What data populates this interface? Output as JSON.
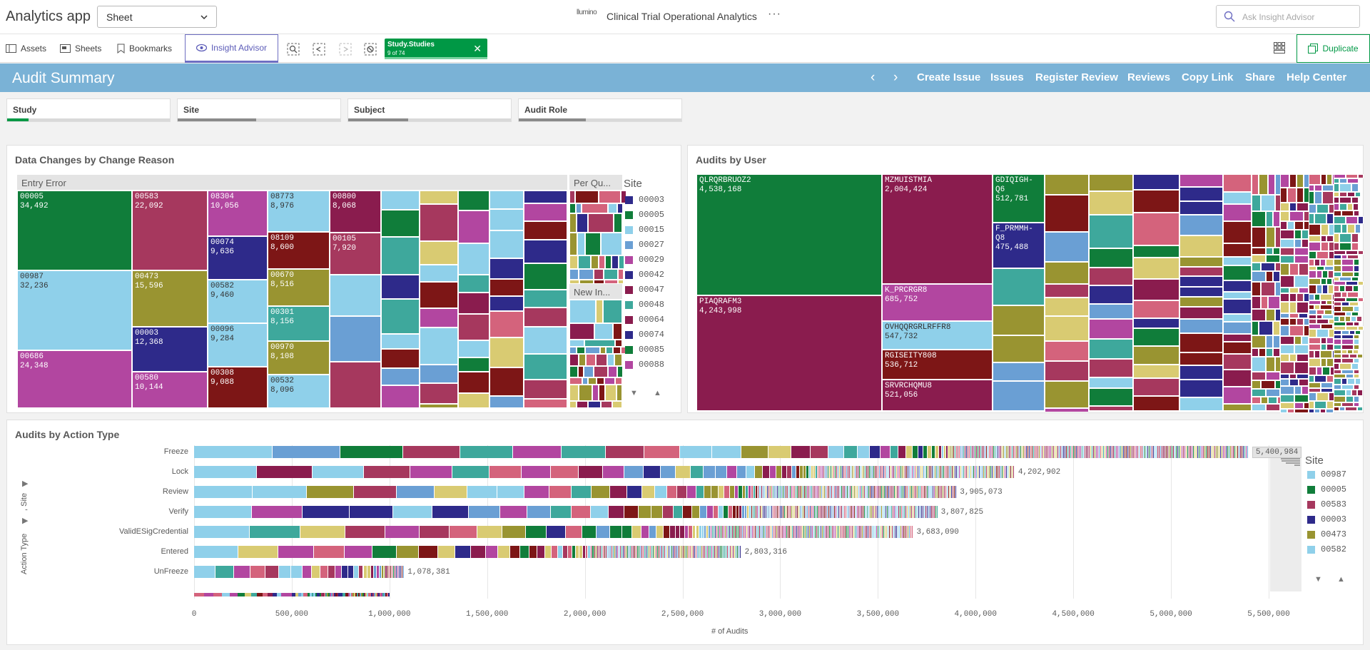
{
  "app": {
    "title": "Analytics app",
    "sheet_select": "Sheet",
    "center_logo": "llumino",
    "center_title": "Clinical Trial Operational Analytics",
    "more": "···",
    "ask_placeholder": "Ask Insight Advisor"
  },
  "toolbar": {
    "assets": "Assets",
    "sheets": "Sheets",
    "bookmarks": "Bookmarks",
    "insight": "Insight Advisor",
    "selection_chip": {
      "field": "Study.Studies",
      "count": "9 of 74"
    },
    "duplicate": "Duplicate"
  },
  "banner": {
    "title": "Audit Summary",
    "prev": "‹",
    "next": "›",
    "links": [
      "Create Issue",
      "Issues",
      "Register Review",
      "Reviews",
      "Copy Link",
      "Share",
      "Help Center"
    ]
  },
  "filters": [
    {
      "label": "Study",
      "selected_fraction": 0.1
    },
    {
      "label": "Site",
      "selected_fraction": 0.0
    },
    {
      "label": "Subject",
      "selected_fraction": 0.0
    },
    {
      "label": "Audit Role",
      "selected_fraction": 0.0
    }
  ],
  "colors": {
    "green": "#107d3a",
    "rose": "#a6385e",
    "purple": "#b246a0",
    "navy": "#2e2a8a",
    "olive": "#999431",
    "sky": "#8fd0ea",
    "blue": "#6a9fd4",
    "teal": "#3ea89c",
    "maroon": "#7d1616",
    "wine": "#8a1c4e",
    "pink": "#d4637c",
    "khaki": "#d9cb72",
    "accent": "#009845",
    "banner": "#7ab2d6"
  },
  "treemap_reason": {
    "title": "Data Changes by Change Reason",
    "group_main": "Entry Error",
    "group_2": "Per Qu...",
    "group_3": "New In...",
    "cells": [
      {
        "site": "00005",
        "value": "34,492"
      },
      {
        "site": "00987",
        "value": "32,236"
      },
      {
        "site": "00686",
        "value": "24,348"
      },
      {
        "site": "00583",
        "value": "22,092"
      },
      {
        "site": "00473",
        "value": "15,596"
      },
      {
        "site": "00003",
        "value": "12,368"
      },
      {
        "site": "00580",
        "value": "10,144"
      },
      {
        "site": "08304",
        "value": "10,056"
      },
      {
        "site": "00074",
        "value": "9,636"
      },
      {
        "site": "00582",
        "value": "9,460"
      },
      {
        "site": "00096",
        "value": "9,284"
      },
      {
        "site": "00308",
        "value": "9,088"
      },
      {
        "site": "08773",
        "value": "8,976"
      },
      {
        "site": "08109",
        "value": "8,600"
      },
      {
        "site": "00670",
        "value": "8,516"
      },
      {
        "site": "00301",
        "value": "8,156"
      },
      {
        "site": "00970",
        "value": "8,108"
      },
      {
        "site": "00532",
        "value": "8,096"
      },
      {
        "site": "00800",
        "value": "8,068"
      },
      {
        "site": "00105",
        "value": "7,920"
      }
    ],
    "legend_title": "Site",
    "legend": [
      "00003",
      "00005",
      "00015",
      "00027",
      "00029",
      "00042",
      "00047",
      "00048",
      "00064",
      "00074",
      "00085",
      "00088"
    ]
  },
  "treemap_user": {
    "title": "Audits by User",
    "cells": [
      {
        "user": "QLRQRBRUOZ2",
        "value": "4,538,168"
      },
      {
        "user": "PIAQRAFM3",
        "value": "4,243,998"
      },
      {
        "user": "MZMUISTMIA",
        "value": "2,004,424"
      },
      {
        "user": "K_PRCRGR8",
        "value": "685,752"
      },
      {
        "user": "OVHQQRGRLRFFR8",
        "value": "547,732"
      },
      {
        "user": "RGISEITY808",
        "value": "536,712"
      },
      {
        "user": "SRVRCHQMU8",
        "value": "521,056"
      },
      {
        "user": "GDIQIGH-Q6",
        "value": "512,781"
      },
      {
        "user": "F_PRMMH-Q8",
        "value": "475,488"
      }
    ]
  },
  "bar_chart_title": "Audits by Action Type",
  "chart_data": {
    "type": "bar",
    "orientation": "horizontal",
    "stacked": true,
    "categories": [
      "Freeze",
      "Lock",
      "Review",
      "Verify",
      "ValidESigCredential",
      "Entered",
      "UnFreeze"
    ],
    "values": [
      5400984,
      4202902,
      3905073,
      3807825,
      3683090,
      2803316,
      1078381
    ],
    "value_labels": [
      "5,400,984",
      "4,202,902",
      "3,905,073",
      "3,807,825",
      "3,683,090",
      "2,803,316",
      "1,078,381"
    ],
    "xlabel": "# of Audits",
    "ylabel": "Action Type",
    "ylabel_2": ", Site",
    "xlim": [
      0,
      5500000
    ],
    "xticks": [
      "0",
      "500,000",
      "1,000,000",
      "1,500,000",
      "2,000,000",
      "2,500,000",
      "3,000,000",
      "3,500,000",
      "4,000,000",
      "4,500,000",
      "5,000,000",
      "5,500,000"
    ],
    "legend_title": "Site",
    "legend": [
      "00987",
      "00005",
      "00583",
      "00003",
      "00473",
      "00582"
    ],
    "grid": true
  }
}
